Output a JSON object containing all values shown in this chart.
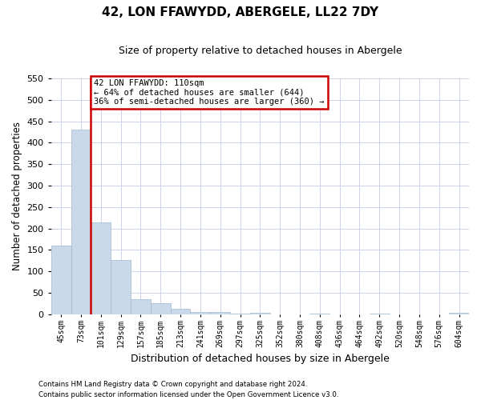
{
  "title": "42, LON FFAWYDD, ABERGELE, LL22 7DY",
  "subtitle": "Size of property relative to detached houses in Abergele",
  "xlabel": "Distribution of detached houses by size in Abergele",
  "ylabel": "Number of detached properties",
  "bin_labels": [
    "45sqm",
    "73sqm",
    "101sqm",
    "129sqm",
    "157sqm",
    "185sqm",
    "213sqm",
    "241sqm",
    "269sqm",
    "297sqm",
    "325sqm",
    "352sqm",
    "380sqm",
    "408sqm",
    "436sqm",
    "464sqm",
    "492sqm",
    "520sqm",
    "548sqm",
    "576sqm",
    "604sqm"
  ],
  "bar_heights": [
    160,
    430,
    215,
    127,
    35,
    25,
    12,
    6,
    5,
    1,
    3,
    0,
    0,
    2,
    0,
    0,
    1,
    0,
    0,
    0,
    3
  ],
  "bar_color": "#c9d9ea",
  "bar_edge_color": "#a0b8cc",
  "annotation_line1": "42 LON FFAWYDD: 110sqm",
  "annotation_line2": "← 64% of detached houses are smaller (644)",
  "annotation_line3": "36% of semi-detached houses are larger (360) →",
  "annotation_box_color": "#ffffff",
  "annotation_box_edge": "#cc0000",
  "red_line_color": "#cc0000",
  "ylim": [
    0,
    550
  ],
  "yticks": [
    0,
    50,
    100,
    150,
    200,
    250,
    300,
    350,
    400,
    450,
    500,
    550
  ],
  "footer_line1": "Contains HM Land Registry data © Crown copyright and database right 2024.",
  "footer_line2": "Contains public sector information licensed under the Open Government Licence v3.0.",
  "background_color": "#ffffff",
  "grid_color": "#c8cce8"
}
